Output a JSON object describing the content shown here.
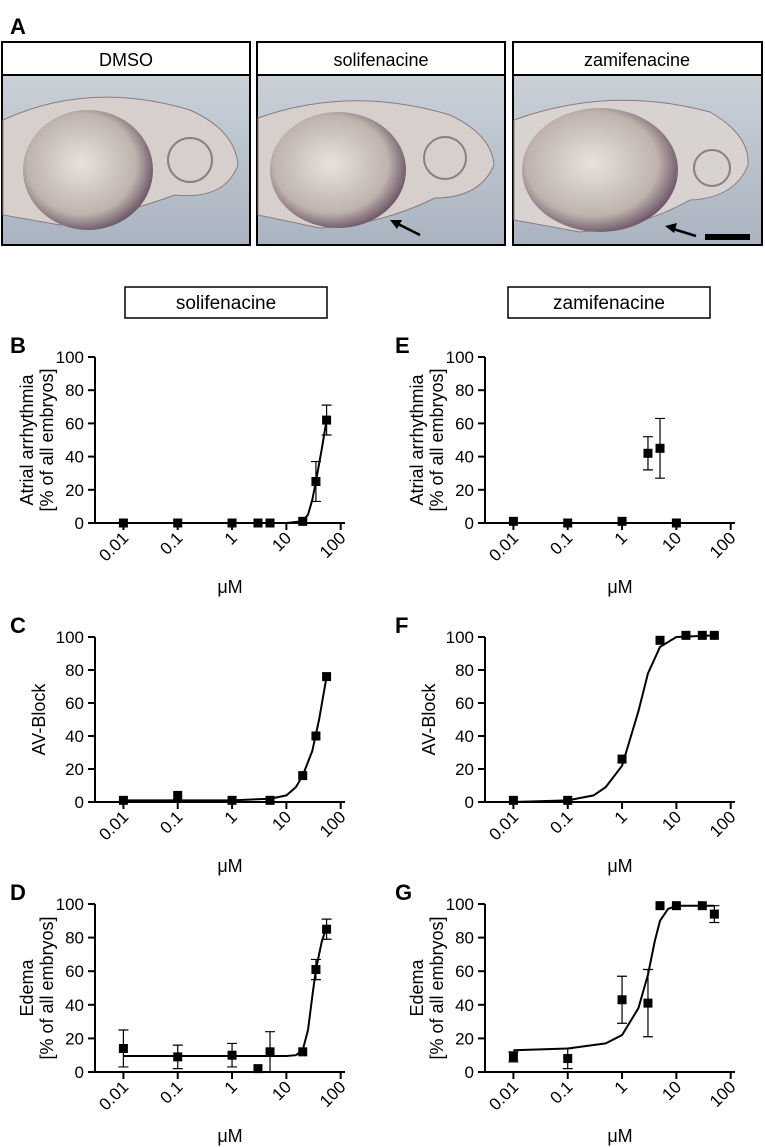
{
  "panel_a": {
    "label": "A",
    "titles": [
      "DMSO",
      "solifenacine",
      "zamifenacine"
    ]
  },
  "column_headers": [
    "solifenacine",
    "zamifenacine"
  ],
  "chart_data": [
    {
      "type": "scatter",
      "label": "B",
      "ylabel": [
        "Atrial arrhythmia",
        "[% of all embryos]"
      ],
      "xlabel": "μM",
      "color": "#000000",
      "xscale": "log",
      "xlim": [
        0.003,
        120
      ],
      "xticks": [
        0.01,
        0.1,
        1,
        10,
        100
      ],
      "ylim": [
        0,
        100
      ],
      "yticks": [
        0,
        20,
        40,
        60,
        80,
        100
      ],
      "x": [
        0.01,
        0.1,
        1,
        3,
        5,
        20,
        35,
        55
      ],
      "values": [
        0,
        0,
        0,
        0,
        0,
        1,
        25,
        62
      ],
      "errors": [
        null,
        null,
        null,
        null,
        null,
        null,
        12,
        9
      ],
      "fit": {
        "x": [
          0.01,
          1,
          10,
          20,
          25,
          30,
          35,
          45,
          55
        ],
        "values": [
          0,
          0,
          0,
          1,
          5,
          14,
          25,
          45,
          62
        ]
      }
    },
    {
      "type": "scatter",
      "label": "C",
      "ylabel": [
        "AV-Block"
      ],
      "xlabel": "μM",
      "color": "#000000",
      "xscale": "log",
      "xlim": [
        0.003,
        120
      ],
      "xticks": [
        0.01,
        0.1,
        1,
        10,
        100
      ],
      "ylim": [
        0,
        100
      ],
      "yticks": [
        0,
        20,
        40,
        60,
        80,
        100
      ],
      "x": [
        0.01,
        0.1,
        1,
        5,
        20,
        35,
        55
      ],
      "values": [
        1,
        4,
        1,
        1,
        16,
        40,
        76
      ],
      "errors": [
        null,
        null,
        null,
        null,
        null,
        null,
        null
      ],
      "fit": {
        "x": [
          0.01,
          1,
          5,
          10,
          15,
          20,
          30,
          40,
          55
        ],
        "values": [
          1,
          1,
          2,
          4,
          9,
          16,
          31,
          50,
          76
        ]
      }
    },
    {
      "type": "scatter",
      "label": "D",
      "ylabel": [
        "Edema",
        "[% of all embryos]"
      ],
      "xlabel": "μM",
      "color": "#000000",
      "xscale": "log",
      "xlim": [
        0.003,
        120
      ],
      "xticks": [
        0.01,
        0.1,
        1,
        10,
        100
      ],
      "ylim": [
        0,
        100
      ],
      "yticks": [
        0,
        20,
        40,
        60,
        80,
        100
      ],
      "x": [
        0.01,
        0.1,
        1,
        3,
        5,
        20,
        35,
        55
      ],
      "values": [
        14,
        9,
        10,
        2,
        12,
        12,
        61,
        85
      ],
      "errors": [
        11,
        7,
        7,
        null,
        12,
        null,
        6,
        6
      ],
      "fit": {
        "x": [
          0.01,
          10,
          15,
          20,
          25,
          30,
          35,
          45,
          55
        ],
        "values": [
          9.5,
          9.5,
          10,
          13,
          25,
          45,
          61,
          78,
          86
        ]
      }
    },
    {
      "type": "scatter",
      "label": "E",
      "ylabel": [
        "Atrial arrhythmia",
        "[% of all embryos]"
      ],
      "xlabel": "μM",
      "color": "#000000",
      "xscale": "log",
      "xlim": [
        0.003,
        120
      ],
      "xticks": [
        0.01,
        0.1,
        1,
        10,
        100
      ],
      "ylim": [
        0,
        100
      ],
      "yticks": [
        0,
        20,
        40,
        60,
        80,
        100
      ],
      "x": [
        0.01,
        0.1,
        1,
        3,
        5,
        10
      ],
      "values": [
        1,
        0,
        1,
        42,
        45,
        0
      ],
      "errors": [
        null,
        null,
        null,
        10,
        18,
        null
      ]
    },
    {
      "type": "scatter",
      "label": "F",
      "ylabel": [
        "AV-Block"
      ],
      "xlabel": "μM",
      "color": "#000000",
      "xscale": "log",
      "xlim": [
        0.003,
        120
      ],
      "xticks": [
        0.01,
        0.1,
        1,
        10,
        100
      ],
      "ylim": [
        0,
        100
      ],
      "yticks": [
        0,
        20,
        40,
        60,
        80,
        100
      ],
      "x": [
        0.01,
        0.1,
        1,
        5,
        15,
        30,
        50
      ],
      "values": [
        1,
        1,
        26,
        98,
        101,
        101,
        101
      ],
      "errors": [
        null,
        null,
        null,
        null,
        null,
        null,
        null
      ],
      "fit": {
        "x": [
          0.01,
          0.1,
          0.3,
          0.5,
          1,
          2,
          3,
          5,
          10,
          50
        ],
        "values": [
          0,
          1,
          4,
          9,
          22,
          55,
          78,
          94,
          100,
          101
        ]
      }
    },
    {
      "type": "scatter",
      "label": "G",
      "ylabel": [
        "Edema",
        "[% of all embryos]"
      ],
      "xlabel": "μM",
      "color": "#000000",
      "xscale": "log",
      "xlim": [
        0.003,
        120
      ],
      "xticks": [
        0.01,
        0.1,
        1,
        10,
        100
      ],
      "ylim": [
        0,
        100
      ],
      "yticks": [
        0,
        20,
        40,
        60,
        80,
        100
      ],
      "x": [
        0.01,
        0.1,
        1,
        3,
        5,
        10,
        30,
        50
      ],
      "values": [
        9,
        8,
        43,
        41,
        99,
        99,
        99,
        94
      ],
      "errors": [
        3,
        6,
        14,
        20,
        null,
        null,
        null,
        5
      ],
      "fit": {
        "x": [
          0.01,
          0.1,
          0.5,
          1,
          2,
          3,
          4,
          5,
          7,
          10,
          50
        ],
        "values": [
          13,
          14,
          17,
          22,
          38,
          58,
          78,
          90,
          97,
          99,
          99
        ]
      }
    }
  ]
}
